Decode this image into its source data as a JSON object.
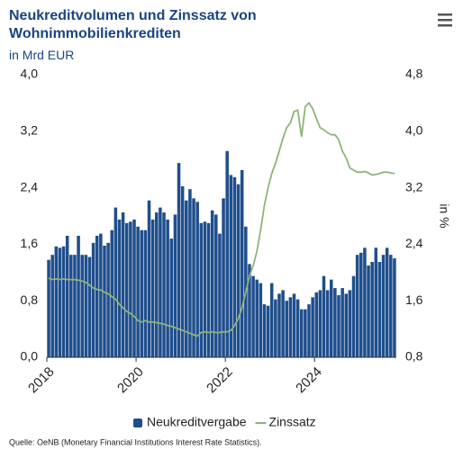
{
  "chart_data": {
    "type": "bar_line",
    "title": "Neukreditvolumen und Zinssatz von Wohnimmobilienkrediten",
    "subtitle": "in Mrd EUR",
    "y2_label": "in %",
    "source": "Quelle: OeNB (Monetary Financial Institutions Interest Rate Statistics).",
    "categories": [
      "2018",
      null,
      null,
      null,
      null,
      null,
      null,
      null,
      null,
      null,
      null,
      null,
      null,
      null,
      null,
      null,
      null,
      null,
      null,
      null,
      null,
      null,
      null,
      null,
      "2020",
      null,
      null,
      null,
      null,
      null,
      null,
      null,
      null,
      null,
      null,
      null,
      null,
      null,
      null,
      null,
      null,
      null,
      null,
      null,
      null,
      null,
      null,
      null,
      "2022",
      null,
      null,
      null,
      null,
      null,
      null,
      null,
      null,
      null,
      null,
      null,
      null,
      null,
      null,
      null,
      null,
      null,
      null,
      null,
      null,
      null,
      null,
      null,
      "2024",
      null,
      null,
      null,
      null,
      null,
      null,
      null,
      null,
      null,
      null,
      null,
      null,
      null,
      null,
      null,
      null,
      null,
      null,
      null,
      null,
      null
    ],
    "ylim": [
      0,
      4.0
    ],
    "yticks": [
      {
        "value": 0,
        "label": "0,0"
      },
      {
        "value": 0.8,
        "label": "0,8"
      },
      {
        "value": 1.6,
        "label": "1,6"
      },
      {
        "value": 2.4,
        "label": "2,4"
      },
      {
        "value": 3.2,
        "label": "3,2"
      },
      {
        "value": 4.0,
        "label": "4,0"
      }
    ],
    "y2lim": [
      0.8,
      4.8
    ],
    "y2ticks": [
      {
        "value": 0.8,
        "label": "0,8"
      },
      {
        "value": 1.6,
        "label": "1,6"
      },
      {
        "value": 2.4,
        "label": "2,4"
      },
      {
        "value": 3.2,
        "label": "3,2"
      },
      {
        "value": 4.0,
        "label": "4,0"
      },
      {
        "value": 4.8,
        "label": "4,8"
      }
    ],
    "series": [
      {
        "name": "Neukreditvergabe",
        "color": "#1f4e8c",
        "kind": "bar",
        "axis": "y",
        "values": [
          1.38,
          1.45,
          1.57,
          1.55,
          1.57,
          1.72,
          1.45,
          1.45,
          1.72,
          1.45,
          1.45,
          1.42,
          1.62,
          1.72,
          1.75,
          1.58,
          1.62,
          1.8,
          2.12,
          1.95,
          2.05,
          1.9,
          1.92,
          1.95,
          1.85,
          1.8,
          1.8,
          2.22,
          1.95,
          2.05,
          2.12,
          2.05,
          1.95,
          1.68,
          2.02,
          2.75,
          2.42,
          2.22,
          2.38,
          2.25,
          2.2,
          1.9,
          1.92,
          1.9,
          2.08,
          2.02,
          1.75,
          2.25,
          2.92,
          2.58,
          2.55,
          2.45,
          2.65,
          1.85,
          1.32,
          1.15,
          1.1,
          1.05,
          0.75,
          0.73,
          1.05,
          0.82,
          0.9,
          0.95,
          0.8,
          0.85,
          0.9,
          0.82,
          0.68,
          0.68,
          0.75,
          0.85,
          0.92,
          0.95,
          1.15,
          0.95,
          1.1,
          0.98,
          0.88,
          0.98,
          0.9,
          0.95,
          1.15,
          1.45,
          1.48,
          1.55,
          1.3,
          1.35,
          1.55,
          1.35,
          1.45,
          1.55,
          1.45,
          1.4
        ]
      },
      {
        "name": "Zinssatz",
        "color": "#8fb47a",
        "kind": "line",
        "axis": "y2",
        "values": [
          1.92,
          1.9,
          1.91,
          1.9,
          1.91,
          1.9,
          1.9,
          1.9,
          1.89,
          1.88,
          1.86,
          1.82,
          1.78,
          1.76,
          1.75,
          1.72,
          1.7,
          1.66,
          1.62,
          1.55,
          1.5,
          1.45,
          1.42,
          1.38,
          1.32,
          1.3,
          1.32,
          1.3,
          1.3,
          1.29,
          1.28,
          1.27,
          1.25,
          1.24,
          1.22,
          1.2,
          1.18,
          1.16,
          1.14,
          1.12,
          1.1,
          1.15,
          1.16,
          1.15,
          1.16,
          1.15,
          1.15,
          1.16,
          1.16,
          1.18,
          1.25,
          1.35,
          1.5,
          1.72,
          1.95,
          2.1,
          2.3,
          2.6,
          2.95,
          3.2,
          3.4,
          3.55,
          3.72,
          3.9,
          4.05,
          4.12,
          4.28,
          4.3,
          3.92,
          4.35,
          4.4,
          4.32,
          4.18,
          4.05,
          4.02,
          3.98,
          3.95,
          3.95,
          3.88,
          3.72,
          3.62,
          3.48,
          3.45,
          3.42,
          3.42,
          3.43,
          3.41,
          3.38,
          3.39,
          3.4,
          3.42,
          3.42,
          3.41,
          3.4
        ]
      }
    ]
  }
}
